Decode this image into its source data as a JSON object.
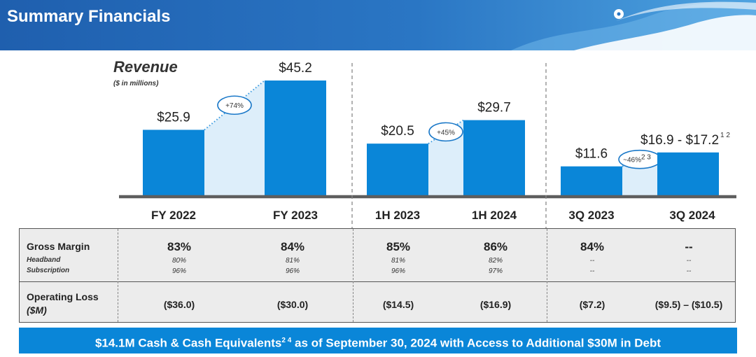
{
  "header": {
    "title": "Summary Financials"
  },
  "colors": {
    "bar": "#0a86d8",
    "header": "#2a76c4",
    "banner": "#0a86d8"
  },
  "chart_data": {
    "type": "bar",
    "title": "Revenue",
    "subtitle": "($ in millions)",
    "categories": [
      "FY 2022",
      "FY 2023",
      "1H 2023",
      "1H 2024",
      "3Q 2023",
      "3Q 2024"
    ],
    "values": [
      25.9,
      45.2,
      20.5,
      29.7,
      11.6,
      17.05
    ],
    "labels": [
      "$25.9",
      "$45.2",
      "$20.5",
      "$29.7",
      "$11.6",
      "$16.9 - $17.2"
    ],
    "label_superscript": [
      "",
      "",
      "",
      "",
      "",
      "1 2"
    ],
    "groups": [
      [
        "FY 2022",
        "FY 2023"
      ],
      [
        "1H 2023",
        "1H 2024"
      ],
      [
        "3Q 2023",
        "3Q 2024"
      ]
    ],
    "growth": [
      "+74%",
      "+45%",
      "~46%"
    ],
    "growth_superscript": [
      "",
      "",
      "2 3"
    ],
    "grid": false
  },
  "table": {
    "gross_margin": {
      "label": "Gross Margin",
      "sub_labels": [
        "Headband",
        "Subscription"
      ],
      "values": [
        "83%",
        "84%",
        "85%",
        "86%",
        "84%",
        "--"
      ],
      "headband": [
        "80%",
        "81%",
        "81%",
        "82%",
        "--",
        "--"
      ],
      "subscription": [
        "96%",
        "96%",
        "96%",
        "97%",
        "--",
        "--"
      ]
    },
    "operating_loss": {
      "label": "Operating Loss",
      "unit": "($M)",
      "values": [
        "($36.0)",
        "($30.0)",
        "($14.5)",
        "($16.9)",
        "($7.2)",
        "($9.5) – ($10.5)"
      ]
    }
  },
  "banner": {
    "text_before": "$14.1M Cash & Cash Equivalents",
    "superscript": "2 4",
    "text_after": " as of September 30, 2024 with Access to Additional $30M in Debt"
  }
}
